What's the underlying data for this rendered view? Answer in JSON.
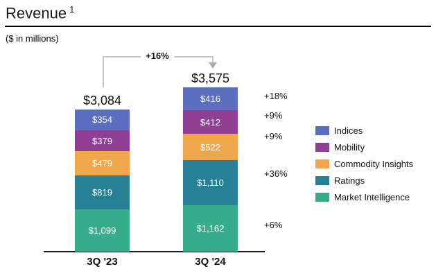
{
  "header": {
    "title": "Revenue",
    "footnote_marker": "1",
    "subtitle": "($ in millions)"
  },
  "chart_data": {
    "type": "stacked-bar",
    "title": "Revenue",
    "units": "$ in millions",
    "categories": [
      "3Q '23",
      "3Q '24"
    ],
    "series": [
      {
        "name": "Indices",
        "color": "#5b6ec0",
        "values": [
          354,
          416
        ],
        "growth": "+18%"
      },
      {
        "name": "Mobility",
        "color": "#8f4095",
        "values": [
          379,
          412
        ],
        "growth": "+9%"
      },
      {
        "name": "Commodity Insights",
        "color": "#f0a64b",
        "values": [
          479,
          522
        ],
        "growth": "+9%"
      },
      {
        "name": "Ratings",
        "color": "#277f95",
        "values": [
          819,
          1110
        ],
        "growth": "+36%"
      },
      {
        "name": "Market Intelligence",
        "color": "#38ad8c",
        "values": [
          1099,
          1162
        ],
        "growth": "+6%"
      }
    ],
    "segment_labels": [
      [
        "$354",
        "$379",
        "$479",
        "$819",
        "$1,099"
      ],
      [
        "$416",
        "$412",
        "$522",
        "$1,110",
        "$1,162"
      ]
    ],
    "totals": [
      "$3,084",
      "$3,575"
    ],
    "total_growth_label": "+16%",
    "legend_position": "right",
    "legend": [
      "Indices",
      "Mobility",
      "Commodity Insights",
      "Ratings",
      "Market Intelligence"
    ],
    "colors": {
      "connector_line": "#c6c6c6",
      "arrow": "#ababab",
      "axis": "#1a1a1a",
      "segment_text": "#ffffff"
    }
  }
}
